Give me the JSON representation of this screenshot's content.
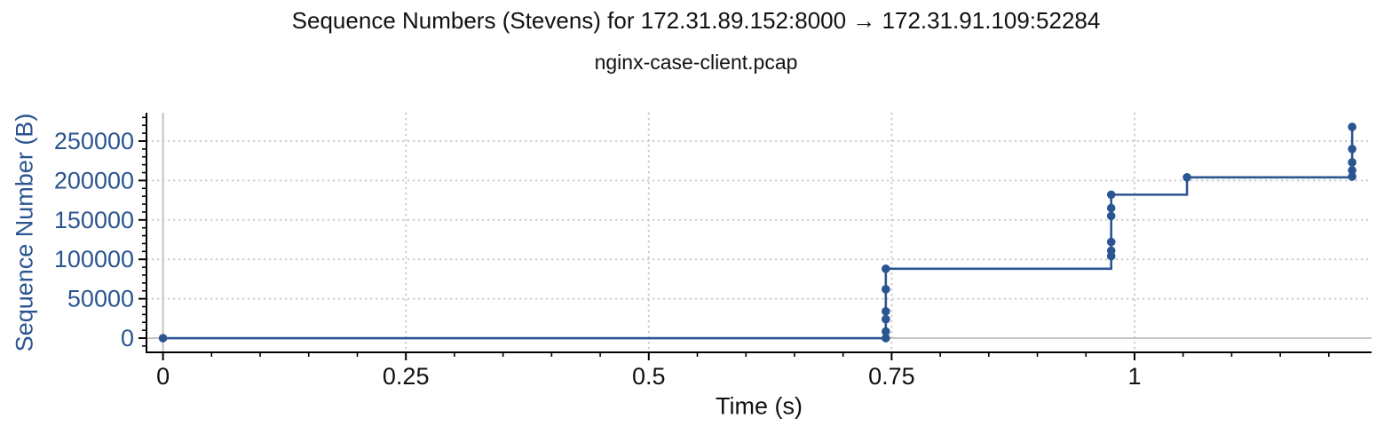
{
  "header": {
    "title": "Sequence Numbers (Stevens) for 172.31.89.152:8000 → 172.31.91.109:52284",
    "subtitle": "nginx-case-client.pcap"
  },
  "chart_data": {
    "type": "line",
    "title": "Sequence Numbers (Stevens) for 172.31.89.152:8000 → 172.31.91.109:52284",
    "subtitle": "nginx-case-client.pcap",
    "xlabel": "Time (s)",
    "ylabel": "Sequence Number (B)",
    "xlim": [
      -0.017,
      1.244
    ],
    "ylim": [
      -18000,
      286000
    ],
    "x_ticks": {
      "values": [
        0,
        0.25,
        0.5,
        0.75,
        1
      ],
      "labels": [
        "0",
        "0.25",
        "0.5",
        "0.75",
        "1"
      ]
    },
    "y_ticks": {
      "values": [
        0,
        50000,
        100000,
        150000,
        200000,
        250000
      ],
      "labels": [
        "0",
        "50000",
        "100000",
        "150000",
        "200000",
        "250000"
      ]
    },
    "x_minor_step": 0.05,
    "y_minor_step": 10000,
    "grid": "dotted gridlines at major ticks, solid gray zerolines at x=0 and y=0",
    "legend": "none",
    "line_shape": "hv",
    "series": [
      {
        "name": "sequence-numbers",
        "x": [
          0,
          0.744,
          0.744,
          0.744,
          0.744,
          0.744,
          0.744,
          0.976,
          0.976,
          0.976,
          0.976,
          0.976,
          0.976,
          1.054,
          1.224,
          1.224,
          1.224,
          1.224,
          1.224
        ],
        "y": [
          0,
          0,
          8500,
          24000,
          34000,
          62000,
          88000,
          104000,
          111000,
          122000,
          155000,
          165000,
          182000,
          204000,
          205000,
          213000,
          223000,
          240000,
          268000
        ]
      }
    ],
    "style": {
      "series_color": "#2b5591",
      "marker_radius": 4.8,
      "line_width": 2.6,
      "grid_color": "#cbcbcb",
      "zeroline_color": "#c3c3c3",
      "axis_color": "#000000",
      "x_tick_label_color": "#111111",
      "y_tick_label_color": "#2b5591"
    }
  }
}
